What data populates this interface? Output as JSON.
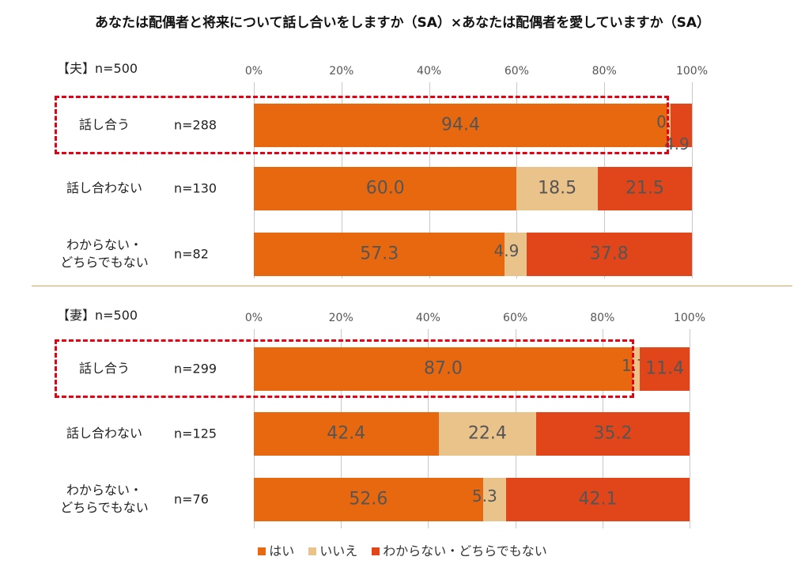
{
  "title": "あなたは配偶者と将来について話し合いをしますか（SA）×あなたは配偶者を愛していますか（SA）",
  "colors": {
    "yes": "#e8680f",
    "no": "#eac38b",
    "unknown": "#e0461a",
    "highlight": "#e60012"
  },
  "chart_data": [
    {
      "type": "bar",
      "orientation": "horizontal-stacked-percent",
      "group_label": "【夫】n=500",
      "xlim": [
        0,
        100
      ],
      "ticks": [
        "0%",
        "20%",
        "40%",
        "60%",
        "80%",
        "100%"
      ],
      "categories": [
        {
          "label": "話し合う",
          "n": "n=288",
          "highlighted": true
        },
        {
          "label": "話し合わない",
          "n": "n=130",
          "highlighted": false
        },
        {
          "label": "わからない・\nどちらでもない",
          "n": "n=82",
          "highlighted": false
        }
      ],
      "series": [
        {
          "name": "はい",
          "values": [
            94.4,
            60.0,
            57.3
          ]
        },
        {
          "name": "いいえ",
          "values": [
            0.7,
            18.5,
            4.9
          ]
        },
        {
          "name": "わからない・どちらでもない",
          "values": [
            4.9,
            21.5,
            37.8
          ]
        }
      ]
    },
    {
      "type": "bar",
      "orientation": "horizontal-stacked-percent",
      "group_label": "【妻】n=500",
      "xlim": [
        0,
        100
      ],
      "ticks": [
        "0%",
        "20%",
        "40%",
        "60%",
        "80%",
        "100%"
      ],
      "categories": [
        {
          "label": "話し合う",
          "n": "n=299",
          "highlighted": true
        },
        {
          "label": "話し合わない",
          "n": "n=125",
          "highlighted": false
        },
        {
          "label": "わからない・\nどちらでもない",
          "n": "n=76",
          "highlighted": false
        }
      ],
      "series": [
        {
          "name": "はい",
          "values": [
            87.0,
            42.4,
            52.6
          ]
        },
        {
          "name": "いいえ",
          "values": [
            1.7,
            22.4,
            5.3
          ]
        },
        {
          "name": "わからない・どちらでもない",
          "values": [
            11.4,
            35.2,
            42.1
          ]
        }
      ]
    }
  ],
  "legend": [
    {
      "name": "はい",
      "color_key": "yes"
    },
    {
      "name": "いいえ",
      "color_key": "no"
    },
    {
      "name": "わからない・どちらでもない",
      "color_key": "unknown"
    }
  ]
}
